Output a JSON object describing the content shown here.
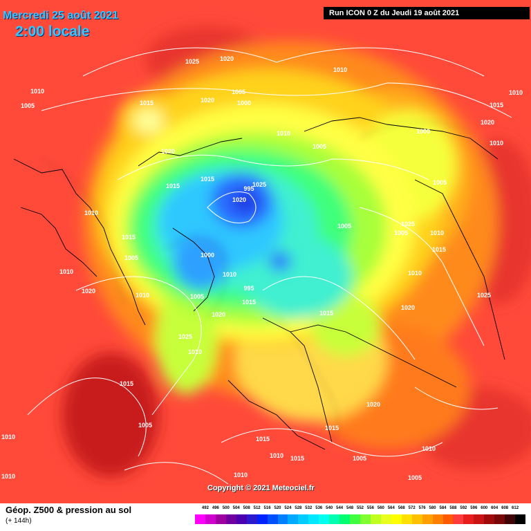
{
  "header": {
    "date_title": "Mercredi 25 août 2021",
    "time_title": "2:00 locale",
    "run_info": "Run ICON 0 Z du Jeudi 19 août 2021"
  },
  "footer": {
    "product_title": "Géop. Z500 & pression au sol",
    "forecast_hour": "(+ 144h)",
    "copyright": "Copyright © 2021 Meteociel.fr"
  },
  "legend": {
    "values": [
      "492",
      "496",
      "500",
      "504",
      "508",
      "512",
      "516",
      "520",
      "524",
      "528",
      "532",
      "536",
      "540",
      "544",
      "548",
      "552",
      "556",
      "560",
      "564",
      "568",
      "572",
      "576",
      "580",
      "584",
      "588",
      "592",
      "596",
      "600",
      "604",
      "608",
      "612"
    ],
    "colors": [
      "#ff00ff",
      "#d000d0",
      "#a000a0",
      "#7000a0",
      "#4a00b0",
      "#2a1ad0",
      "#0022ff",
      "#0050ff",
      "#0080ff",
      "#00aaff",
      "#00ccff",
      "#00e8ff",
      "#00ffee",
      "#00ffb0",
      "#00ff70",
      "#40ff40",
      "#80ff30",
      "#c0ff20",
      "#e8ff20",
      "#ffff00",
      "#ffe000",
      "#ffc000",
      "#ffa000",
      "#ff8000",
      "#ff5a00",
      "#ff3b3b",
      "#e81e1e",
      "#c81414",
      "#a00a0a",
      "#780808",
      "#400404",
      "#000000"
    ]
  },
  "pressure_labels": [
    "1025",
    "1020",
    "1010",
    "1005",
    "1015",
    "1000",
    "995",
    "1020",
    "1010",
    "1005",
    "1000",
    "1010",
    "1015",
    "1020",
    "1025",
    "1010",
    "1005",
    "1015",
    "1020",
    "1010",
    "1005",
    "1020",
    "1025",
    "1015",
    "1010",
    "1005",
    "1015",
    "1010",
    "1005",
    "1000",
    "995",
    "1010",
    "1005",
    "1015",
    "1020",
    "1025",
    "1010",
    "1015",
    "1020",
    "1010",
    "1015",
    "1005",
    "1010",
    "1010",
    "1015",
    "1010",
    "1020",
    "1005",
    "1015",
    "1005",
    "1015",
    "1010",
    "1010",
    "1020",
    "1025",
    "1010",
    "1015",
    "1010",
    "1005"
  ]
}
